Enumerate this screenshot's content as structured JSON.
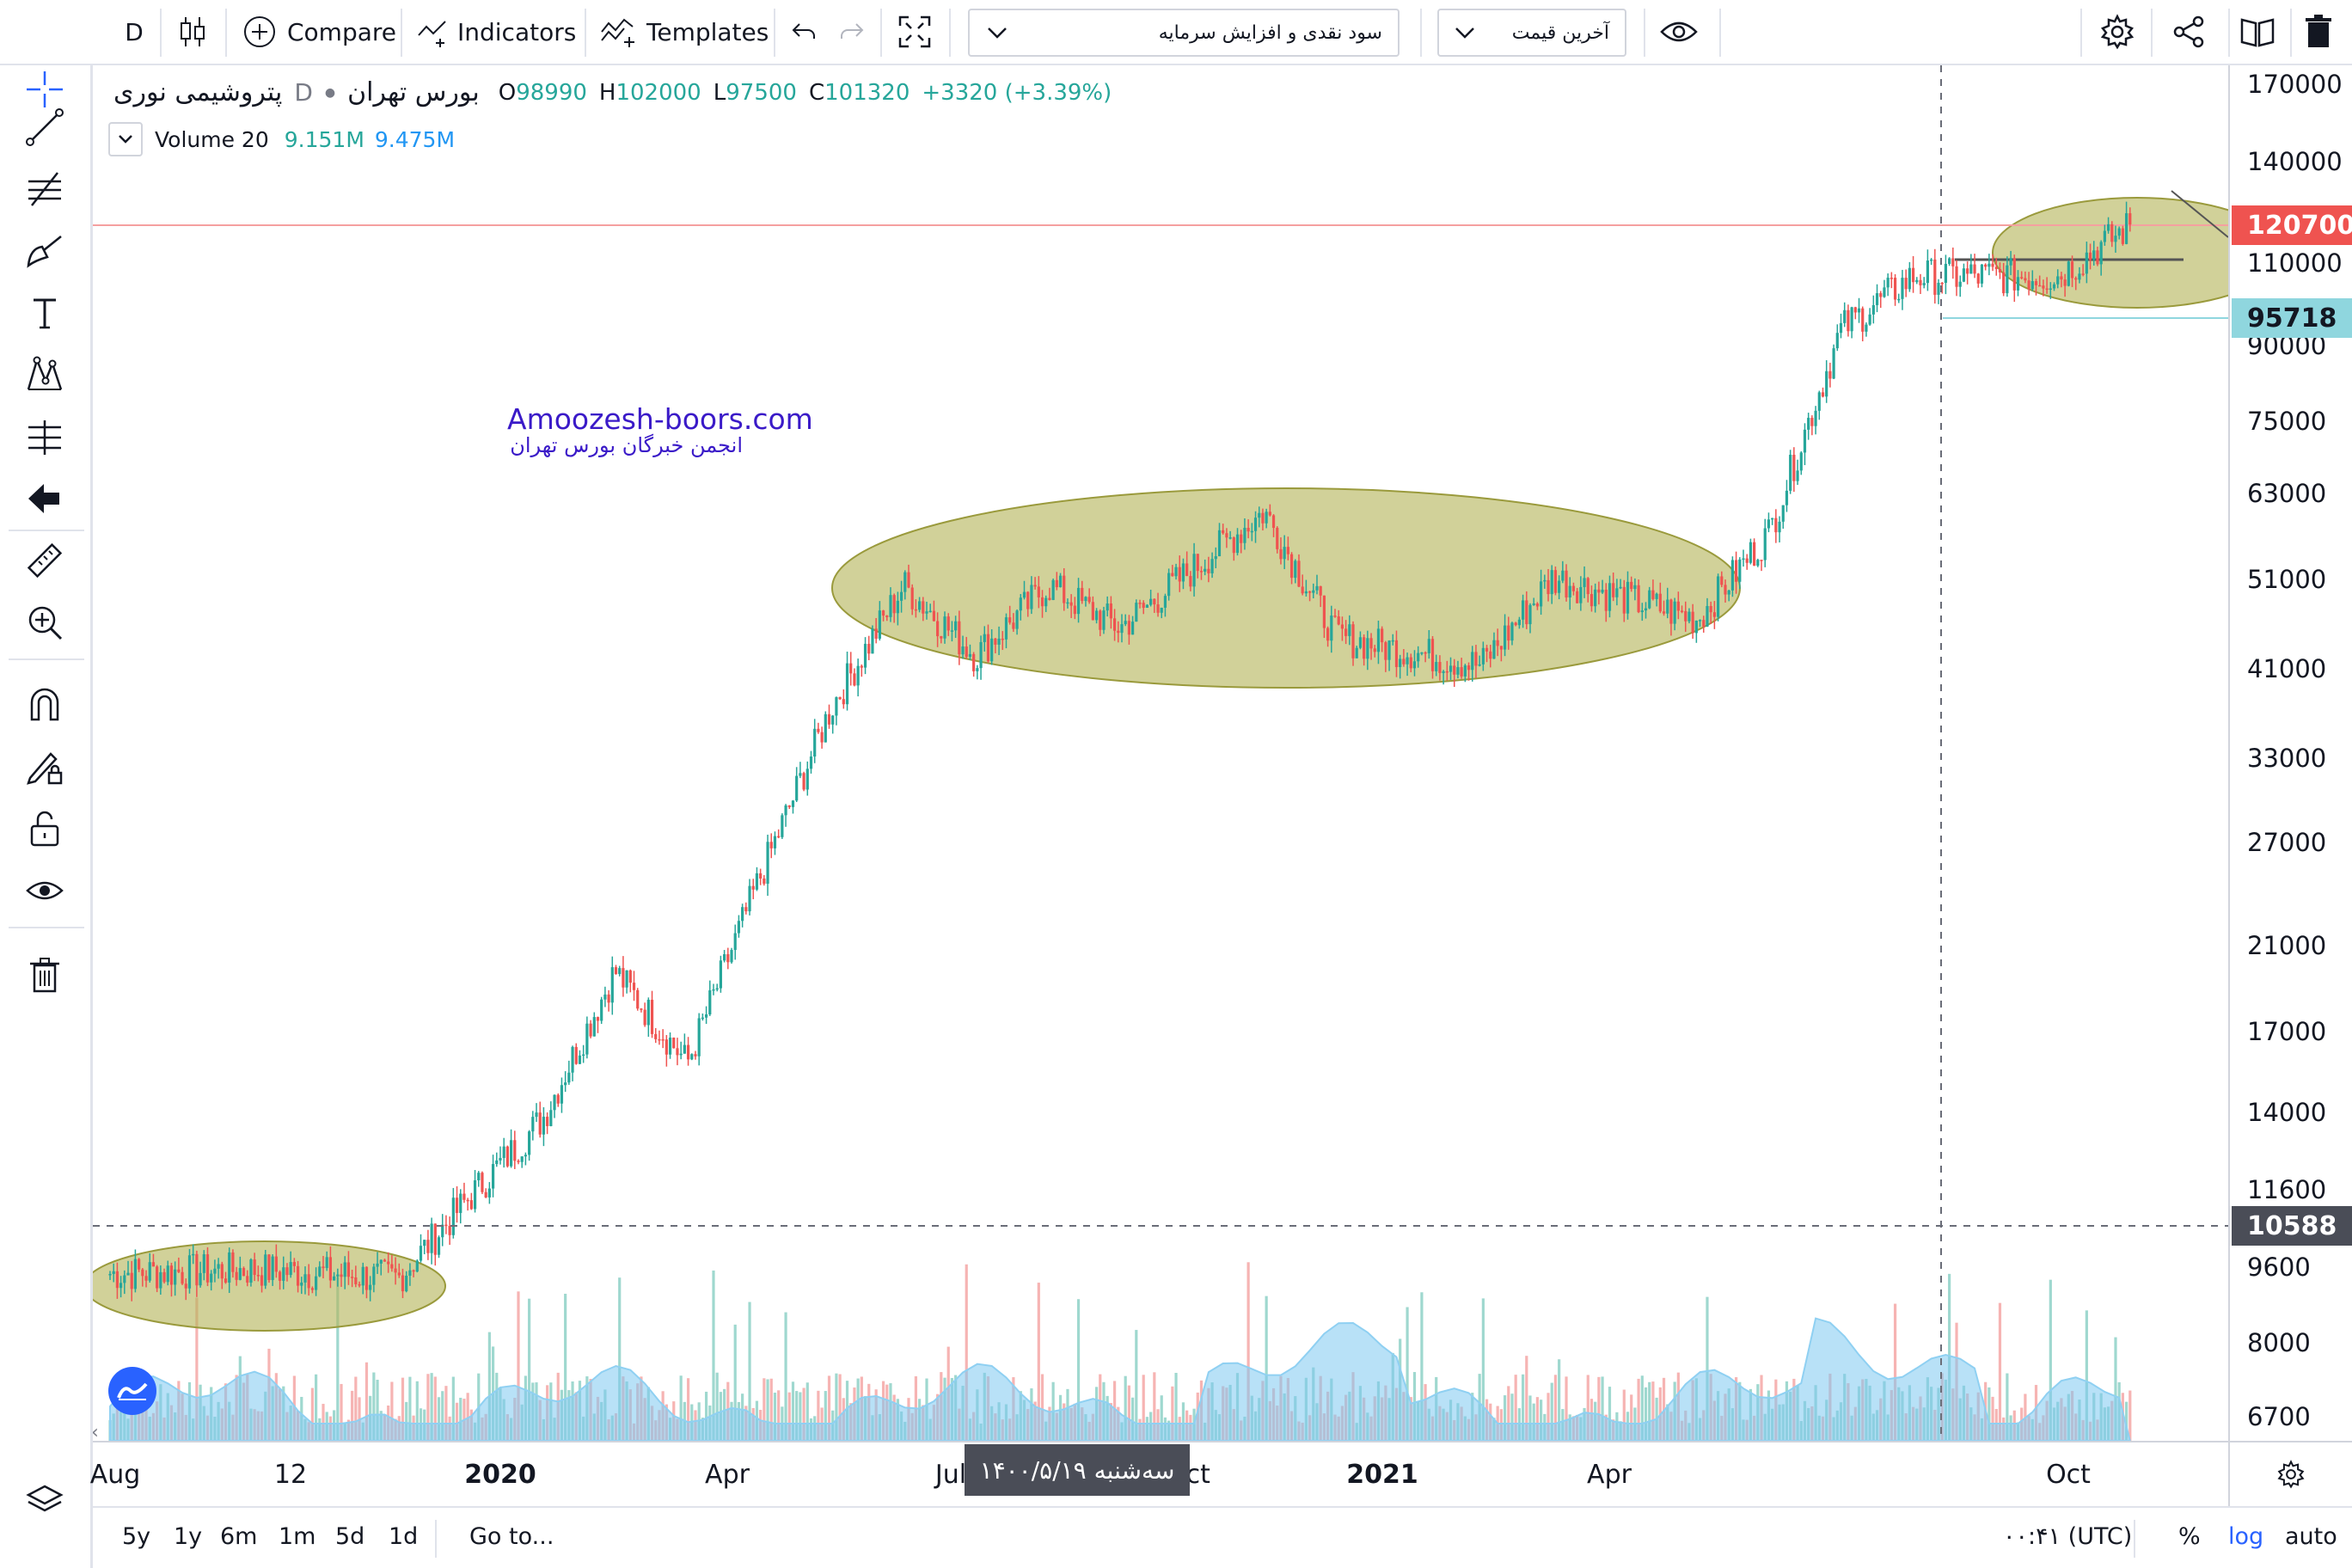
{
  "toolbar": {
    "interval": "D",
    "compare_label": "Compare",
    "indicators_label": "Indicators",
    "templates_label": "Templates",
    "dropdown_indicator": "سود نقدی و افزایش سرمایه",
    "dropdown_price": "آخرین قیمت"
  },
  "legend": {
    "symbol_name": "پتروشیمی نوری",
    "interval": "D",
    "exchange": "بورس تهران",
    "open_label": "O",
    "open": "98990",
    "high_label": "H",
    "high": "102000",
    "low_label": "L",
    "low": "97500",
    "close_label": "C",
    "close": "101320",
    "change": "+3320 (+3.39%)",
    "volume_name": "Volume 20",
    "volume_value": "9.151M",
    "volume_ma": "9.475M"
  },
  "watermark": {
    "site": "Amoozesh-boors.com",
    "subtitle": "انجمن خبرگان بورس تهران"
  },
  "price_axis": {
    "ticks": [
      "170000",
      "140000",
      "110000",
      "90000",
      "75000",
      "63000",
      "51000",
      "41000",
      "33000",
      "27000",
      "21000",
      "17000",
      "14000",
      "11600",
      "9600",
      "8000",
      "6700"
    ],
    "last_price_label": "120700",
    "line_label": "95718",
    "crosshair_label": "10588"
  },
  "time_axis": {
    "ticks": [
      "Aug",
      "12",
      "2020",
      "Apr",
      "Jul",
      "Oct",
      "2021",
      "Apr",
      "Oct"
    ],
    "crosshair_date": "سه‌شنبه ۱۴۰۰/۵/۱۹"
  },
  "bottom": {
    "ranges": [
      "5y",
      "1y",
      "6m",
      "1m",
      "5d",
      "1d"
    ],
    "goto_label": "Go to...",
    "clock": "۰۰:۴۱ (UTC)",
    "percent_label": "%",
    "log_label": "log",
    "auto_label": "auto"
  },
  "colors": {
    "up": "#26a69a",
    "down": "#ef5350",
    "ellipse_fill": "#b5b55a",
    "volume_ma": "#7ec8f0",
    "last_price": "#ef5350",
    "line_label": "#8fd6de",
    "accent": "#2962ff",
    "watermark": "#3a1ac8"
  },
  "chart_data": {
    "type": "candlestick",
    "series": [
      {
        "x": "2019-08",
        "y": 9600
      },
      {
        "x": "2019-10",
        "y": 9700
      },
      {
        "x": "2019-12",
        "y": 9500
      },
      {
        "x": "2020-01",
        "y": 11600
      },
      {
        "x": "2020-02",
        "y": 14000
      },
      {
        "x": "2020-03",
        "y": 20000
      },
      {
        "x": "2020-04",
        "y": 16000
      },
      {
        "x": "2020-05",
        "y": 25000
      },
      {
        "x": "2020-06",
        "y": 38000
      },
      {
        "x": "2020-07",
        "y": 51000
      },
      {
        "x": "2020-08",
        "y": 43000
      },
      {
        "x": "2020-09",
        "y": 51000
      },
      {
        "x": "2020-10",
        "y": 46000
      },
      {
        "x": "2020-12",
        "y": 61000
      },
      {
        "x": "2021-01",
        "y": 45000
      },
      {
        "x": "2021-03",
        "y": 42000
      },
      {
        "x": "2021-04",
        "y": 52000
      },
      {
        "x": "2021-06",
        "y": 47000
      },
      {
        "x": "2021-07",
        "y": 58000
      },
      {
        "x": "2021-08",
        "y": 95000
      },
      {
        "x": "2021-09",
        "y": 108000
      },
      {
        "x": "2021-11",
        "y": 108000
      },
      {
        "x": "2021-12",
        "y": 122000
      }
    ],
    "ylim": [
      6400,
      180000
    ],
    "yscale": "log"
  }
}
